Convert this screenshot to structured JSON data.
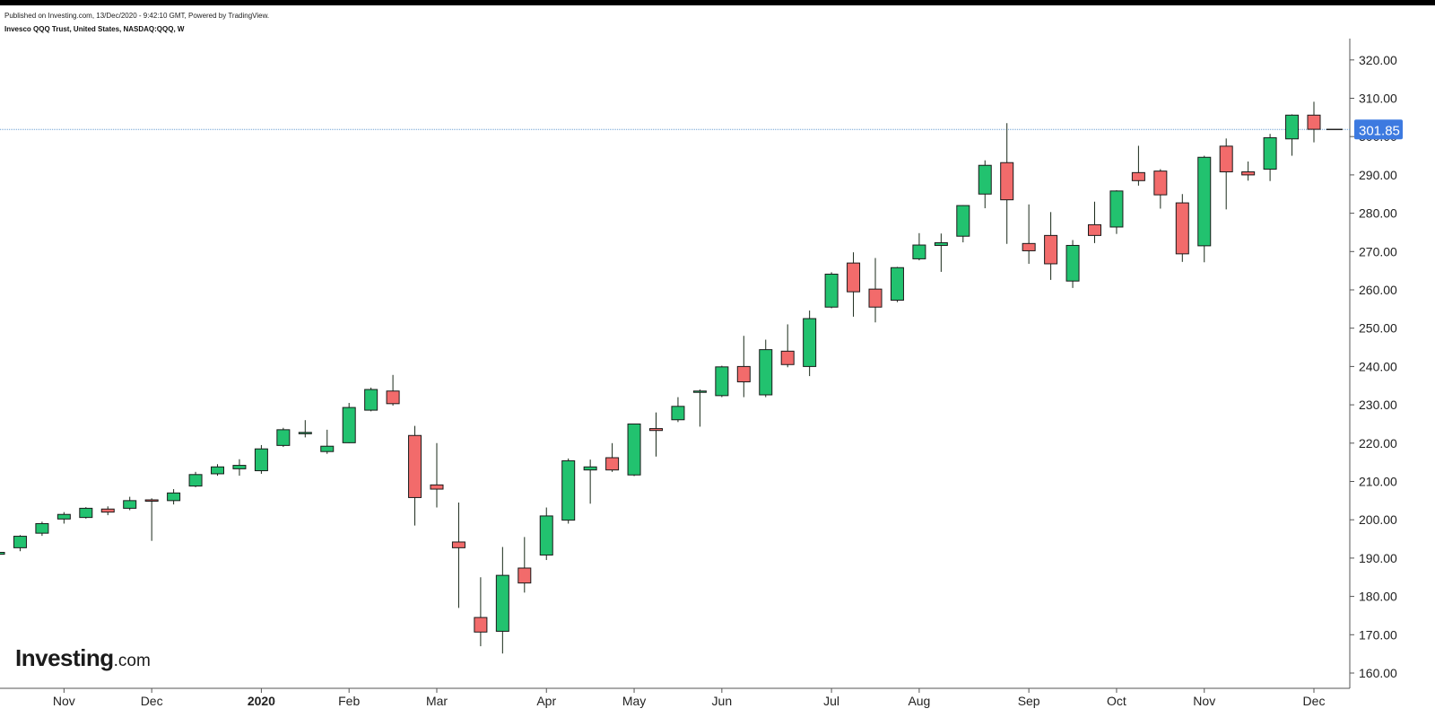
{
  "header": {
    "published": "Published on Investing.com, 13/Dec/2020 - 9:42:10 GMT, Powered by TradingView.",
    "title": "Invesco QQQ Trust, United States, NASDAQ:QQQ, W"
  },
  "logo": {
    "brand": "Investing",
    "suffix": ".com"
  },
  "colors": {
    "up": "#22c26f",
    "down": "#f26b6b",
    "wick": "#1a2a1a",
    "axis": "#555555",
    "last_price_line": "#6a9fd4",
    "last_price_badge": "#3d7ae0"
  },
  "chart_data": {
    "type": "candlestick",
    "title": "Invesco QQQ Trust, United States, NASDAQ:QQQ, W",
    "interval": "W",
    "y_ticks": [
      "160.00",
      "170.00",
      "180.00",
      "190.00",
      "200.00",
      "210.00",
      "220.00",
      "230.00",
      "240.00",
      "250.00",
      "260.00",
      "270.00",
      "280.00",
      "290.00",
      "300.00",
      "310.00",
      "320.00"
    ],
    "ylim": [
      157,
      325
    ],
    "last_price": 301.85,
    "last_price_label": "301.85",
    "x_labels": [
      {
        "label": "Nov",
        "bar": 3,
        "bold": false
      },
      {
        "label": "Dec",
        "bar": 7,
        "bold": false
      },
      {
        "label": "2020",
        "bar": 12,
        "bold": true
      },
      {
        "label": "Feb",
        "bar": 16,
        "bold": false
      },
      {
        "label": "Mar",
        "bar": 20,
        "bold": false
      },
      {
        "label": "Apr",
        "bar": 25,
        "bold": false
      },
      {
        "label": "May",
        "bar": 29,
        "bold": false
      },
      {
        "label": "Jun",
        "bar": 33,
        "bold": false
      },
      {
        "label": "Jul",
        "bar": 38,
        "bold": false
      },
      {
        "label": "Aug",
        "bar": 42,
        "bold": false
      },
      {
        "label": "Sep",
        "bar": 47,
        "bold": false
      },
      {
        "label": "Oct",
        "bar": 51,
        "bold": false
      },
      {
        "label": "Nov",
        "bar": 55,
        "bold": false
      },
      {
        "label": "Dec",
        "bar": 60,
        "bold": false
      }
    ],
    "candles": [
      {
        "o": 191.0,
        "h": 192.5,
        "l": 190.5,
        "c": 191.5
      },
      {
        "o": 192.7,
        "h": 196.0,
        "l": 191.8,
        "c": 195.7
      },
      {
        "o": 196.5,
        "h": 199.5,
        "l": 195.8,
        "c": 199.0
      },
      {
        "o": 200.2,
        "h": 202.0,
        "l": 199.0,
        "c": 201.4
      },
      {
        "o": 200.6,
        "h": 203.3,
        "l": 200.3,
        "c": 203.0
      },
      {
        "o": 202.8,
        "h": 203.5,
        "l": 201.2,
        "c": 202.0
      },
      {
        "o": 203.0,
        "h": 206.0,
        "l": 202.5,
        "c": 205.0
      },
      {
        "o": 205.2,
        "h": 205.6,
        "l": 194.5,
        "c": 205.1
      },
      {
        "o": 205.0,
        "h": 208.0,
        "l": 204.0,
        "c": 207.0
      },
      {
        "o": 208.8,
        "h": 212.5,
        "l": 208.5,
        "c": 211.8
      },
      {
        "o": 212.0,
        "h": 214.5,
        "l": 211.5,
        "c": 213.8
      },
      {
        "o": 213.3,
        "h": 215.8,
        "l": 211.5,
        "c": 214.2
      },
      {
        "o": 212.8,
        "h": 219.5,
        "l": 212.0,
        "c": 218.5
      },
      {
        "o": 219.4,
        "h": 224.0,
        "l": 219.0,
        "c": 223.5
      },
      {
        "o": 222.6,
        "h": 226.0,
        "l": 221.5,
        "c": 222.8
      },
      {
        "o": 217.8,
        "h": 223.5,
        "l": 217.2,
        "c": 219.2
      },
      {
        "o": 220.1,
        "h": 230.5,
        "l": 220.0,
        "c": 229.3
      },
      {
        "o": 228.6,
        "h": 234.5,
        "l": 228.3,
        "c": 234.0
      },
      {
        "o": 233.6,
        "h": 237.8,
        "l": 229.8,
        "c": 230.3
      },
      {
        "o": 222.0,
        "h": 224.5,
        "l": 198.5,
        "c": 205.8
      },
      {
        "o": 209.1,
        "h": 220.0,
        "l": 203.2,
        "c": 208.0
      },
      {
        "o": 194.2,
        "h": 204.5,
        "l": 177.0,
        "c": 192.7
      },
      {
        "o": 174.5,
        "h": 185.0,
        "l": 167.0,
        "c": 170.7
      },
      {
        "o": 170.9,
        "h": 192.9,
        "l": 165.1,
        "c": 185.5
      },
      {
        "o": 187.4,
        "h": 195.5,
        "l": 181.0,
        "c": 183.5
      },
      {
        "o": 190.8,
        "h": 203.2,
        "l": 189.5,
        "c": 201.0
      },
      {
        "o": 199.9,
        "h": 216.0,
        "l": 199.0,
        "c": 215.4
      },
      {
        "o": 213.0,
        "h": 215.7,
        "l": 204.2,
        "c": 213.8
      },
      {
        "o": 216.2,
        "h": 220.0,
        "l": 212.5,
        "c": 213.0
      },
      {
        "o": 211.7,
        "h": 225.0,
        "l": 211.4,
        "c": 225.0
      },
      {
        "o": 223.8,
        "h": 228.0,
        "l": 216.5,
        "c": 223.3
      },
      {
        "o": 226.1,
        "h": 232.0,
        "l": 225.5,
        "c": 229.6
      },
      {
        "o": 233.5,
        "h": 234.0,
        "l": 224.3,
        "c": 233.6
      },
      {
        "o": 232.4,
        "h": 240.2,
        "l": 232.0,
        "c": 239.9
      },
      {
        "o": 240.0,
        "h": 248.0,
        "l": 232.0,
        "c": 236.0
      },
      {
        "o": 232.6,
        "h": 247.0,
        "l": 232.0,
        "c": 244.4
      },
      {
        "o": 244.0,
        "h": 251.0,
        "l": 239.8,
        "c": 240.5
      },
      {
        "o": 240.0,
        "h": 254.6,
        "l": 237.5,
        "c": 252.5
      },
      {
        "o": 255.5,
        "h": 264.6,
        "l": 255.2,
        "c": 264.1
      },
      {
        "o": 267.0,
        "h": 269.8,
        "l": 253.0,
        "c": 259.5
      },
      {
        "o": 260.2,
        "h": 268.3,
        "l": 251.5,
        "c": 255.5
      },
      {
        "o": 257.3,
        "h": 266.0,
        "l": 256.8,
        "c": 265.8
      },
      {
        "o": 268.1,
        "h": 274.8,
        "l": 267.7,
        "c": 271.7
      },
      {
        "o": 271.6,
        "h": 274.7,
        "l": 264.7,
        "c": 272.3
      },
      {
        "o": 274.0,
        "h": 282.1,
        "l": 272.4,
        "c": 282.0
      },
      {
        "o": 285.0,
        "h": 293.8,
        "l": 281.3,
        "c": 292.5
      },
      {
        "o": 293.2,
        "h": 303.5,
        "l": 272.0,
        "c": 283.5
      },
      {
        "o": 272.1,
        "h": 282.3,
        "l": 266.8,
        "c": 270.2
      },
      {
        "o": 274.2,
        "h": 280.3,
        "l": 262.6,
        "c": 266.8
      },
      {
        "o": 262.3,
        "h": 273.0,
        "l": 260.5,
        "c": 271.6
      },
      {
        "o": 277.0,
        "h": 283.0,
        "l": 272.2,
        "c": 274.2
      },
      {
        "o": 276.4,
        "h": 286.0,
        "l": 274.6,
        "c": 285.8
      },
      {
        "o": 290.6,
        "h": 297.6,
        "l": 287.2,
        "c": 288.5
      },
      {
        "o": 291.0,
        "h": 291.5,
        "l": 281.2,
        "c": 284.8
      },
      {
        "o": 282.7,
        "h": 285.0,
        "l": 267.3,
        "c": 269.4
      },
      {
        "o": 271.5,
        "h": 295.0,
        "l": 267.2,
        "c": 294.6
      },
      {
        "o": 297.5,
        "h": 299.5,
        "l": 281.0,
        "c": 290.8
      },
      {
        "o": 290.8,
        "h": 293.5,
        "l": 288.5,
        "c": 290.0
      },
      {
        "o": 291.5,
        "h": 300.7,
        "l": 288.4,
        "c": 299.7
      },
      {
        "o": 299.4,
        "h": 305.8,
        "l": 295.0,
        "c": 305.6
      },
      {
        "o": 305.6,
        "h": 309.1,
        "l": 298.5,
        "c": 301.9
      }
    ]
  }
}
